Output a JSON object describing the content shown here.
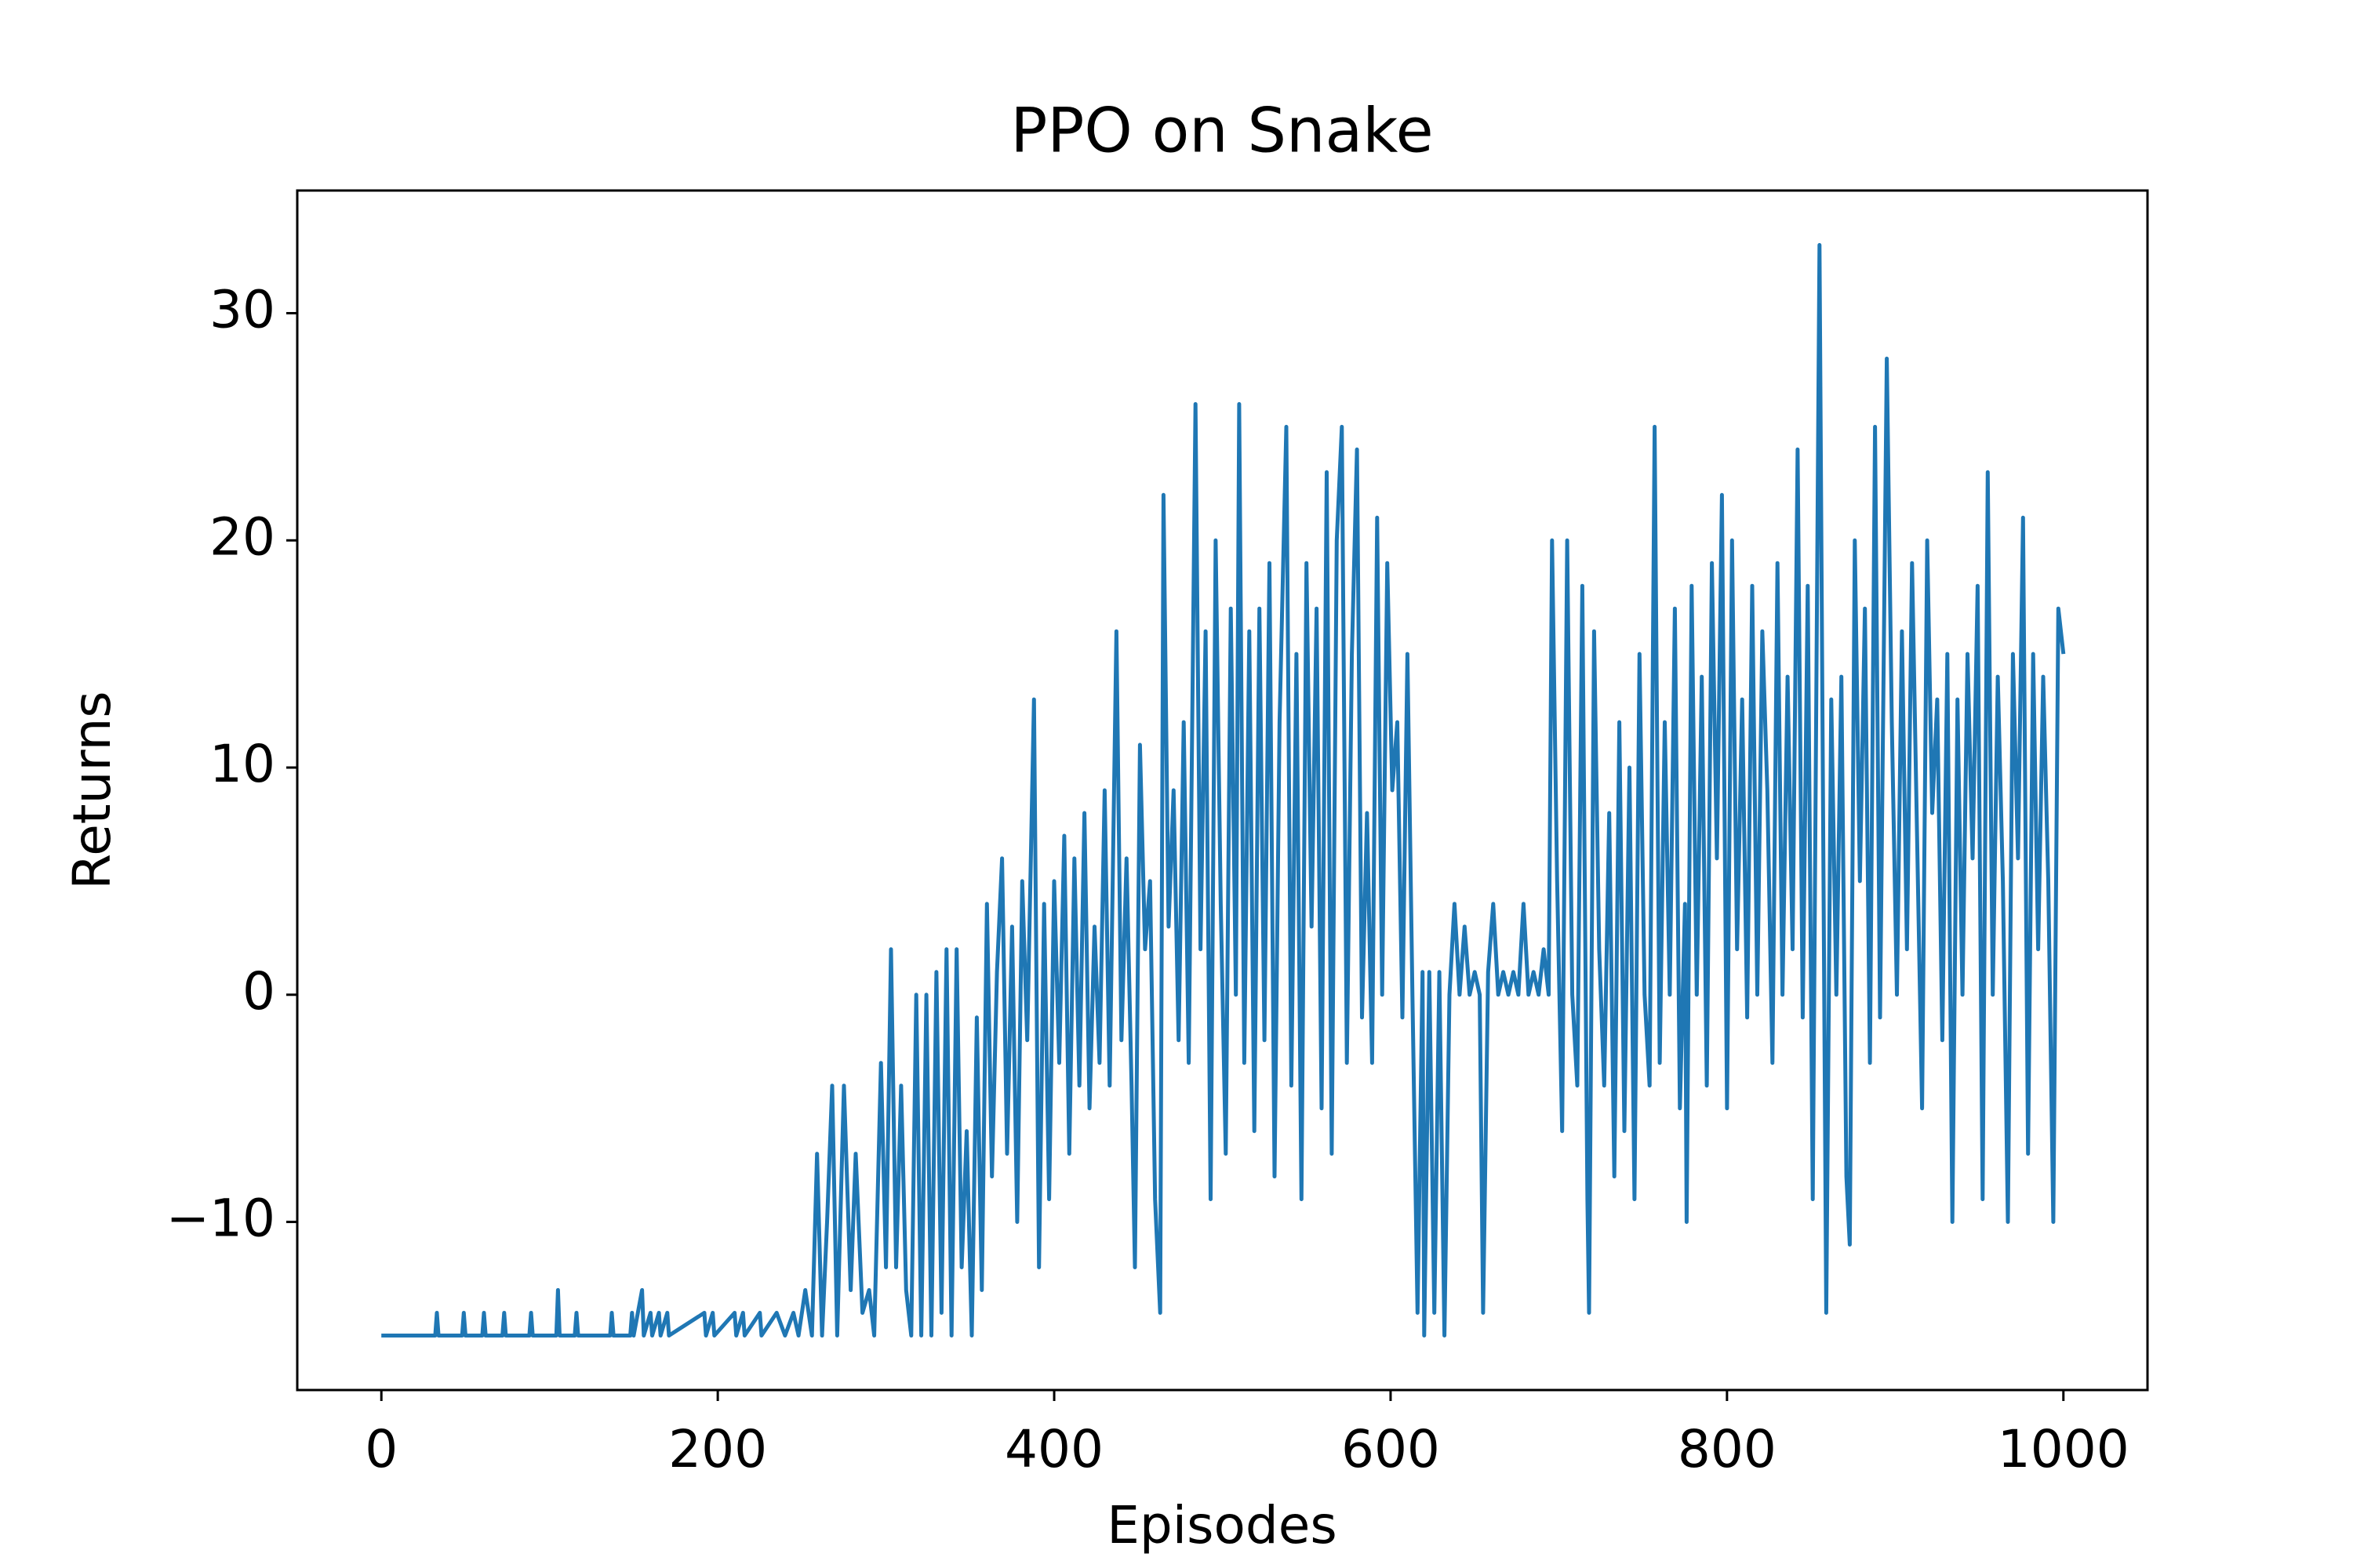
{
  "chart_data": {
    "type": "line",
    "title": "PPO on Snake",
    "x_label": "Episodes",
    "y_label": "Returns",
    "color": "#1f77b4",
    "x": [
      0,
      32,
      33,
      34,
      48,
      49,
      50,
      60,
      61,
      62,
      72,
      73,
      74,
      88,
      89,
      90,
      104,
      105,
      106,
      115,
      116,
      117,
      136,
      137,
      138,
      148,
      149,
      150,
      155,
      156,
      160,
      161,
      165,
      166,
      170,
      171,
      192,
      193,
      197,
      198,
      210,
      211,
      215,
      216,
      225,
      226,
      235,
      240,
      245,
      248,
      252,
      256,
      259,
      262,
      265,
      268,
      271,
      275,
      279,
      282,
      286,
      290,
      293,
      297,
      300,
      303,
      306,
      309,
      312,
      315,
      318,
      321,
      324,
      327,
      330,
      333,
      336,
      339,
      342,
      345,
      348,
      351,
      354,
      357,
      360,
      363,
      366,
      369,
      372,
      375,
      378,
      381,
      384,
      388,
      391,
      394,
      397,
      400,
      403,
      406,
      409,
      412,
      415,
      418,
      421,
      424,
      427,
      430,
      433,
      437,
      440,
      443,
      446,
      448,
      451,
      454,
      457,
      460,
      463,
      465,
      468,
      471,
      474,
      477,
      480,
      484,
      487,
      490,
      493,
      496,
      499,
      502,
      505,
      508,
      510,
      513,
      516,
      519,
      522,
      525,
      528,
      531,
      534,
      538,
      541,
      544,
      547,
      550,
      553,
      556,
      559,
      562,
      565,
      568,
      571,
      574,
      577,
      580,
      583,
      586,
      589,
      592,
      595,
      598,
      601,
      604,
      607,
      610,
      613,
      616,
      619,
      620,
      623,
      626,
      629,
      632,
      635,
      638,
      641,
      644,
      647,
      650,
      653,
      655,
      658,
      661,
      664,
      667,
      670,
      673,
      676,
      679,
      682,
      685,
      688,
      691,
      694,
      696,
      699,
      702,
      705,
      708,
      711,
      714,
      717,
      718,
      721,
      724,
      727,
      730,
      733,
      736,
      739,
      742,
      745,
      748,
      751,
      754,
      757,
      760,
      763,
      766,
      769,
      772,
      775,
      776,
      779,
      782,
      785,
      788,
      791,
      794,
      797,
      800,
      803,
      806,
      809,
      812,
      815,
      818,
      821,
      824,
      827,
      830,
      833,
      836,
      839,
      842,
      845,
      848,
      851,
      855,
      859,
      862,
      865,
      868,
      871,
      873,
      876,
      879,
      882,
      885,
      888,
      891,
      895,
      898,
      901,
      904,
      907,
      910,
      913,
      916,
      919,
      922,
      925,
      928,
      931,
      934,
      937,
      940,
      943,
      946,
      949,
      952,
      955,
      958,
      961,
      964,
      967,
      970,
      973,
      976,
      979,
      982,
      985,
      988,
      991,
      994,
      997,
      1000
    ],
    "values": [
      -15,
      -15,
      -14,
      -15,
      -15,
      -14,
      -15,
      -15,
      -14,
      -15,
      -15,
      -14,
      -15,
      -15,
      -14,
      -15,
      -15,
      -13,
      -15,
      -15,
      -14,
      -15,
      -15,
      -14,
      -15,
      -15,
      -14,
      -15,
      -13,
      -15,
      -14,
      -15,
      -14,
      -15,
      -14,
      -15,
      -14,
      -15,
      -14,
      -15,
      -14,
      -15,
      -14,
      -15,
      -14,
      -15,
      -14,
      -15,
      -14,
      -15,
      -13,
      -15,
      -7,
      -15,
      -10,
      -4,
      -15,
      -4,
      -13,
      -7,
      -14,
      -13,
      -15,
      -3,
      -12,
      2,
      -12,
      -4,
      -13,
      -15,
      0,
      -15,
      0,
      -15,
      1,
      -14,
      2,
      -15,
      2,
      -12,
      -6,
      -15,
      -1,
      -13,
      4,
      -8,
      1,
      6,
      -7,
      3,
      -10,
      5,
      -2,
      13,
      -12,
      4,
      -9,
      5,
      -3,
      7,
      -7,
      6,
      -4,
      8,
      -5,
      3,
      -3,
      9,
      -4,
      16,
      -2,
      6,
      -4,
      -12,
      11,
      2,
      5,
      -9,
      -14,
      22,
      3,
      9,
      -2,
      12,
      -3,
      26,
      2,
      16,
      -9,
      20,
      4,
      -7,
      17,
      0,
      26,
      -3,
      16,
      -6,
      17,
      -2,
      19,
      -8,
      12,
      25,
      -4,
      15,
      -9,
      19,
      3,
      17,
      -5,
      23,
      -7,
      20,
      25,
      -3,
      15,
      24,
      -1,
      8,
      -3,
      21,
      0,
      19,
      9,
      12,
      -1,
      15,
      0,
      -14,
      1,
      -15,
      1,
      -14,
      1,
      -15,
      0,
      4,
      0,
      3,
      0,
      1,
      0,
      -14,
      1,
      4,
      0,
      1,
      0,
      1,
      0,
      4,
      0,
      1,
      0,
      2,
      0,
      20,
      5,
      -6,
      20,
      0,
      -4,
      18,
      -9,
      -14,
      16,
      2,
      -4,
      8,
      -8,
      12,
      -6,
      10,
      -9,
      15,
      0,
      -4,
      25,
      -3,
      12,
      0,
      17,
      -5,
      4,
      -10,
      18,
      0,
      14,
      -4,
      19,
      6,
      22,
      -5,
      20,
      2,
      13,
      -1,
      18,
      0,
      16,
      9,
      -3,
      19,
      0,
      14,
      2,
      24,
      -1,
      18,
      -9,
      33,
      -14,
      13,
      0,
      14,
      -8,
      -11,
      20,
      5,
      17,
      -3,
      25,
      -1,
      28,
      12,
      0,
      16,
      2,
      19,
      7,
      -5,
      20,
      8,
      13,
      -2,
      15,
      -10,
      13,
      0,
      15,
      6,
      18,
      -9,
      23,
      0,
      14,
      5,
      -10,
      15,
      6,
      21,
      -7,
      15,
      2,
      14,
      5,
      -10,
      17,
      15
    ],
    "xlim": [
      -50,
      1050
    ],
    "ylim": [
      -17.4,
      35.4
    ],
    "xticks": [
      0,
      200,
      400,
      600,
      800,
      1000
    ],
    "yticks": [
      {
        "value": -10,
        "label": "−10"
      },
      0,
      10,
      20,
      30
    ]
  }
}
